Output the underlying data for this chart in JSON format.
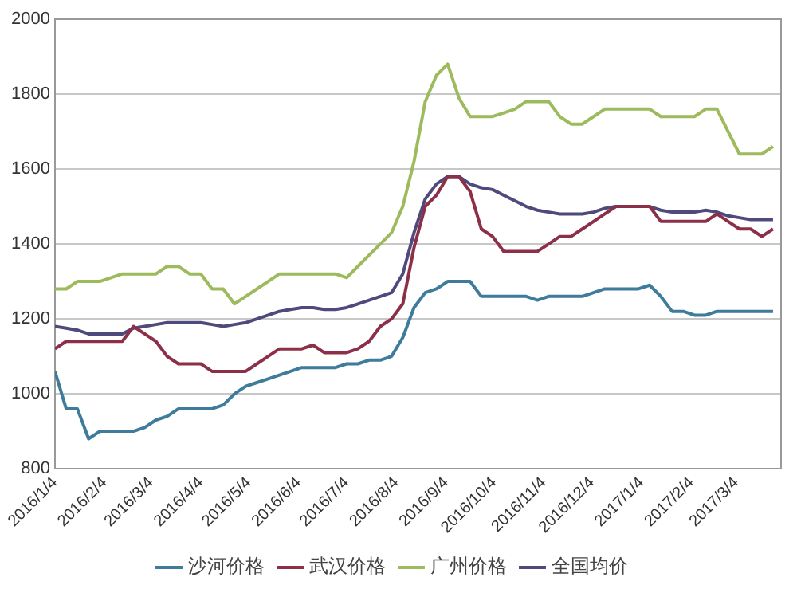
{
  "chart_data": {
    "type": "line",
    "x": [
      "2016-01-04",
      "2016-01-11",
      "2016-01-18",
      "2016-01-25",
      "2016-02-01",
      "2016-02-08",
      "2016-02-15",
      "2016-02-22",
      "2016-02-29",
      "2016-03-07",
      "2016-03-14",
      "2016-03-21",
      "2016-03-28",
      "2016-04-04",
      "2016-04-11",
      "2016-04-18",
      "2016-04-25",
      "2016-05-02",
      "2016-05-09",
      "2016-05-16",
      "2016-05-23",
      "2016-05-30",
      "2016-06-06",
      "2016-06-13",
      "2016-06-20",
      "2016-06-27",
      "2016-07-04",
      "2016-07-11",
      "2016-07-18",
      "2016-07-25",
      "2016-08-01",
      "2016-08-08",
      "2016-08-15",
      "2016-08-22",
      "2016-08-29",
      "2016-09-05",
      "2016-09-12",
      "2016-09-19",
      "2016-09-26",
      "2016-10-03",
      "2016-10-10",
      "2016-10-17",
      "2016-10-24",
      "2016-10-31",
      "2016-11-07",
      "2016-11-14",
      "2016-11-21",
      "2016-11-28",
      "2016-12-05",
      "2016-12-12",
      "2016-12-19",
      "2016-12-26",
      "2017-01-02",
      "2017-01-09",
      "2017-01-16",
      "2017-01-23",
      "2017-01-30",
      "2017-02-06",
      "2017-02-13",
      "2017-02-20",
      "2017-02-27",
      "2017-03-06",
      "2017-03-13",
      "2017-03-20",
      "2017-03-27"
    ],
    "series": [
      {
        "name": "沙河价格",
        "color": "#3f7b9b",
        "values": [
          1060,
          960,
          960,
          880,
          900,
          900,
          900,
          900,
          910,
          930,
          940,
          960,
          960,
          960,
          960,
          970,
          1000,
          1020,
          1030,
          1040,
          1050,
          1060,
          1070,
          1070,
          1070,
          1070,
          1080,
          1080,
          1090,
          1090,
          1100,
          1150,
          1230,
          1270,
          1280,
          1300,
          1300,
          1300,
          1260,
          1260,
          1260,
          1260,
          1260,
          1250,
          1260,
          1260,
          1260,
          1260,
          1270,
          1280,
          1280,
          1280,
          1280,
          1290,
          1260,
          1220,
          1220,
          1210,
          1210,
          1220,
          1220,
          1220,
          1220,
          1220,
          1220
        ]
      },
      {
        "name": "武汉价格",
        "color": "#8c3049",
        "values": [
          1120,
          1140,
          1140,
          1140,
          1140,
          1140,
          1140,
          1180,
          1160,
          1140,
          1100,
          1080,
          1080,
          1080,
          1060,
          1060,
          1060,
          1060,
          1080,
          1100,
          1120,
          1120,
          1120,
          1130,
          1110,
          1110,
          1110,
          1120,
          1140,
          1180,
          1200,
          1240,
          1390,
          1500,
          1530,
          1580,
          1580,
          1540,
          1440,
          1420,
          1380,
          1380,
          1380,
          1380,
          1400,
          1420,
          1420,
          1440,
          1460,
          1480,
          1500,
          1500,
          1500,
          1500,
          1460,
          1460,
          1460,
          1460,
          1460,
          1480,
          1460,
          1440,
          1440,
          1420,
          1440
        ]
      },
      {
        "name": "广州价格",
        "color": "#9dbb5c",
        "values": [
          1280,
          1280,
          1300,
          1300,
          1300,
          1310,
          1320,
          1320,
          1320,
          1320,
          1340,
          1340,
          1320,
          1320,
          1280,
          1280,
          1240,
          1260,
          1280,
          1300,
          1320,
          1320,
          1320,
          1320,
          1320,
          1320,
          1310,
          1340,
          1370,
          1400,
          1430,
          1500,
          1620,
          1780,
          1850,
          1880,
          1790,
          1740,
          1740,
          1740,
          1750,
          1760,
          1780,
          1780,
          1780,
          1740,
          1720,
          1720,
          1740,
          1760,
          1760,
          1760,
          1760,
          1760,
          1740,
          1740,
          1740,
          1740,
          1760,
          1760,
          1700,
          1640,
          1640,
          1640,
          1660
        ]
      },
      {
        "name": "全国均价",
        "color": "#4e4a7c",
        "values": [
          1180,
          1175,
          1170,
          1160,
          1160,
          1160,
          1160,
          1175,
          1180,
          1185,
          1190,
          1190,
          1190,
          1190,
          1185,
          1180,
          1185,
          1190,
          1200,
          1210,
          1220,
          1225,
          1230,
          1230,
          1225,
          1225,
          1230,
          1240,
          1250,
          1260,
          1270,
          1320,
          1430,
          1520,
          1560,
          1580,
          1580,
          1560,
          1550,
          1545,
          1530,
          1515,
          1500,
          1490,
          1485,
          1480,
          1480,
          1480,
          1485,
          1495,
          1500,
          1500,
          1500,
          1500,
          1490,
          1485,
          1485,
          1485,
          1490,
          1485,
          1475,
          1470,
          1465,
          1465,
          1465
        ]
      }
    ],
    "xlim": [
      "2016-01-04",
      "2017-04-01"
    ],
    "xticks": [
      {
        "value": "2016-01-04",
        "label": "2016/1/4"
      },
      {
        "value": "2016-02-04",
        "label": "2016/2/4"
      },
      {
        "value": "2016-03-04",
        "label": "2016/3/4"
      },
      {
        "value": "2016-04-04",
        "label": "2016/4/4"
      },
      {
        "value": "2016-05-04",
        "label": "2016/5/4"
      },
      {
        "value": "2016-06-04",
        "label": "2016/6/4"
      },
      {
        "value": "2016-07-04",
        "label": "2016/7/4"
      },
      {
        "value": "2016-08-04",
        "label": "2016/8/4"
      },
      {
        "value": "2016-09-04",
        "label": "2016/9/4"
      },
      {
        "value": "2016-10-04",
        "label": "2016/10/4"
      },
      {
        "value": "2016-11-04",
        "label": "2016/11/4"
      },
      {
        "value": "2016-12-04",
        "label": "2016/12/4"
      },
      {
        "value": "2017-01-04",
        "label": "2017/1/4"
      },
      {
        "value": "2017-02-04",
        "label": "2017/2/4"
      },
      {
        "value": "2017-03-04",
        "label": "2017/3/4"
      }
    ],
    "ylim": [
      800,
      2000
    ],
    "yticks": [
      800,
      1000,
      1200,
      1400,
      1600,
      1800,
      2000
    ],
    "grid": "y",
    "legend": "bottom",
    "marker": "none",
    "line_style": "solid"
  }
}
